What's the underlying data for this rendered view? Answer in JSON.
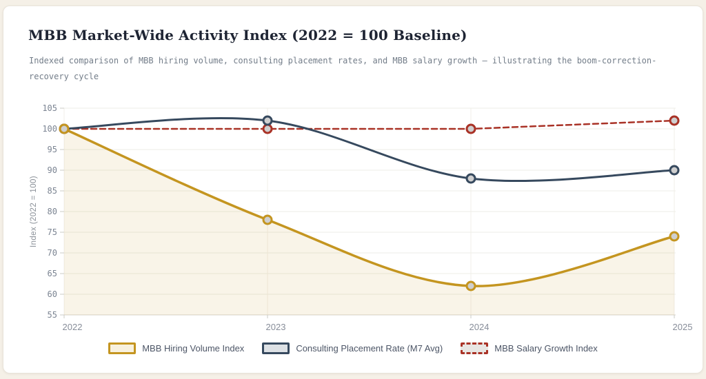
{
  "chart_data": {
    "type": "line",
    "title": "MBB Market-Wide Activity Index (2022 = 100 Baseline)",
    "subtitle": "Indexed comparison of MBB hiring volume, consulting placement rates, and MBB salary growth — illustrating the boom-correction-recovery cycle",
    "x": [
      "2022",
      "2023",
      "2024",
      "2025"
    ],
    "ylabel": "Index (2022 = 100)",
    "ylim": [
      55,
      105
    ],
    "ytick_step": 5,
    "grid": true,
    "legend_position": "bottom",
    "series": [
      {
        "name": "MBB Hiring Volume Index",
        "values": [
          100,
          78,
          62,
          74
        ],
        "color": "#C49520",
        "style": "solid",
        "width": 3.5,
        "area": true,
        "area_color": "rgba(196,149,32,0.10)",
        "legend_fill": "#F8F1DE"
      },
      {
        "name": "Consulting Placement Rate (M7 Avg)",
        "values": [
          100,
          102,
          88,
          90
        ],
        "color": "#36495E",
        "style": "solid",
        "width": 3,
        "area": false,
        "legend_fill": "#DDE1E5"
      },
      {
        "name": "MBB Salary Growth Index",
        "values": [
          100,
          100,
          100,
          102
        ],
        "color": "#A93226",
        "style": "dashed",
        "width": 2.5,
        "area": false,
        "legend_fill": "#E8E6E3"
      }
    ],
    "marker_fill": "#CFCFCF"
  },
  "colors": {
    "page_bg": "#F5F0E7",
    "card_bg": "#FFFFFF",
    "hgrid": "#EDECE7",
    "vgrid": "#F2EFE8",
    "axis_line": "#D7D3CA",
    "tick_mark": "#CBCBC6"
  }
}
